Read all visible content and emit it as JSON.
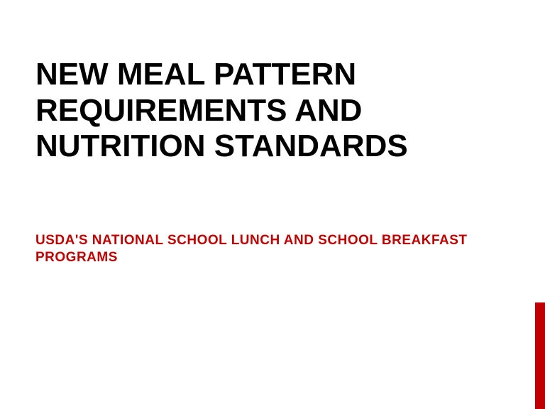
{
  "slide": {
    "title": "NEW MEAL PATTERN REQUIREMENTS AND NUTRITION STANDARDS",
    "subtitle": "USDA'S NATIONAL SCHOOL LUNCH AND SCHOOL BREAKFAST PROGRAMS",
    "title_color": "#000000",
    "subtitle_color": "#c00000",
    "background_color": "#ffffff",
    "title_fontsize": 44,
    "subtitle_fontsize": 19,
    "accent_bar": {
      "color": "#c00000",
      "width": 14,
      "height": 150
    }
  }
}
